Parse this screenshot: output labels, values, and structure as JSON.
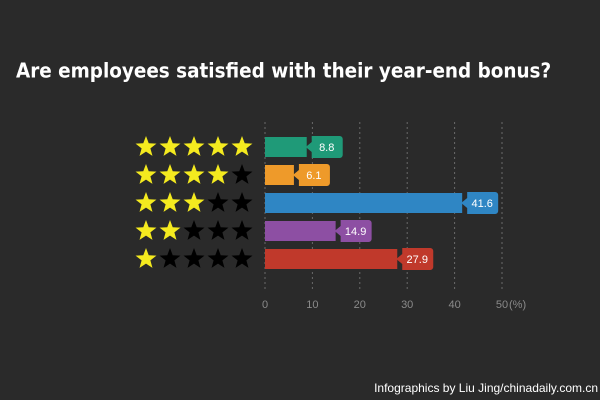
{
  "chart_data": {
    "type": "bar",
    "orientation": "horizontal",
    "title": "Are employees satisfied with their year-end bonus?",
    "stars": [
      5,
      4,
      3,
      2,
      1
    ],
    "categories": [
      null,
      null,
      null,
      null,
      null
    ],
    "values": [
      8.8,
      6.1,
      41.6,
      14.9,
      27.9
    ],
    "colors": [
      "#1f9a78",
      "#ee9a2a",
      "#2f86c4",
      "#8d4fa3",
      "#c0392b"
    ],
    "xlim": [
      0,
      50
    ],
    "xticks": [
      0,
      10,
      20,
      30,
      40,
      50
    ],
    "x_unit": "(%)",
    "grid": true,
    "source": "Infographics by Liu Jing/chinadaily.com.cn"
  }
}
